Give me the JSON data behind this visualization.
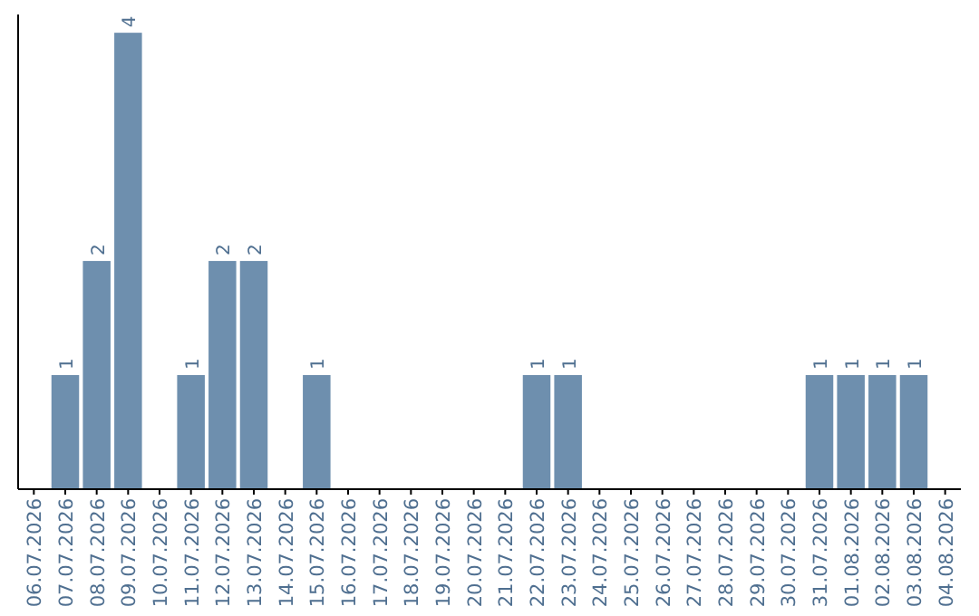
{
  "chart_data": {
    "type": "bar",
    "categories": [
      "06.07.2026",
      "07.07.2026",
      "08.07.2026",
      "09.07.2026",
      "10.07.2026",
      "11.07.2026",
      "12.07.2026",
      "13.07.2026",
      "14.07.2026",
      "15.07.2026",
      "16.07.2026",
      "17.07.2026",
      "18.07.2026",
      "19.07.2026",
      "20.07.2026",
      "21.07.2026",
      "22.07.2026",
      "23.07.2026",
      "24.07.2026",
      "25.07.2026",
      "26.07.2026",
      "27.07.2026",
      "28.07.2026",
      "29.07.2026",
      "30.07.2026",
      "31.07.2026",
      "01.08.2026",
      "02.08.2026",
      "03.08.2026",
      "04.08.2026"
    ],
    "values": [
      0,
      1,
      2,
      4,
      0,
      1,
      2,
      2,
      0,
      1,
      0,
      0,
      0,
      0,
      0,
      0,
      1,
      1,
      0,
      0,
      0,
      0,
      0,
      0,
      0,
      1,
      1,
      1,
      1,
      0
    ],
    "value_labels": [
      null,
      "1",
      "2",
      "4",
      null,
      "1",
      "2",
      "2",
      null,
      "1",
      null,
      null,
      null,
      null,
      null,
      null,
      "1",
      "1",
      null,
      null,
      null,
      null,
      null,
      null,
      null,
      "1",
      "1",
      "1",
      "1",
      null
    ],
    "color": "#6e8fae"
  }
}
